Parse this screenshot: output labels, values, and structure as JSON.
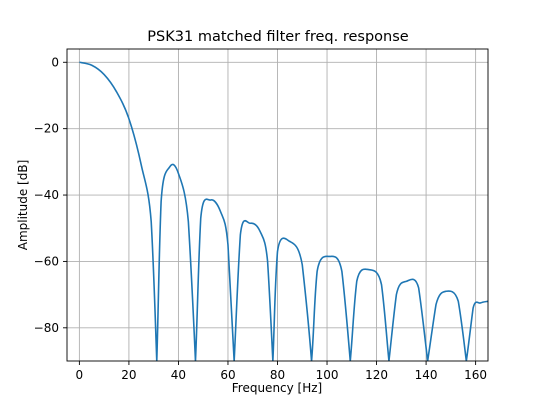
{
  "chart_data": {
    "type": "line",
    "title": "PSK31 matched filter freq. response",
    "xlabel": "Frequency [Hz]",
    "ylabel": "Amplitude [dB]",
    "xlim": [
      -5,
      165
    ],
    "ylim": [
      -90,
      4
    ],
    "xticks": [
      0,
      20,
      40,
      60,
      80,
      100,
      120,
      140,
      160
    ],
    "yticks": [
      0,
      -20,
      -40,
      -60,
      -80
    ],
    "xtick_labels": [
      "0",
      "20",
      "40",
      "60",
      "80",
      "100",
      "120",
      "140",
      "160"
    ],
    "ytick_labels": [
      "0",
      "−20",
      "−40",
      "−60",
      "−80"
    ],
    "grid": true,
    "line_color": "#1f77b4",
    "series": [
      {
        "name": "",
        "x": [
          0,
          5,
          10,
          15,
          20,
          25,
          29,
          31.25,
          33,
          36.5,
          40,
          44,
          46.875,
          49,
          53,
          57,
          60,
          62.5,
          65,
          69,
          73,
          76,
          78.125,
          80,
          85,
          90,
          93.75,
          96,
          101,
          106,
          109.375,
          112,
          117,
          122,
          125,
          128,
          132,
          137,
          140.625,
          144,
          148,
          153,
          156.25,
          159,
          162,
          165
        ],
        "y": [
          0,
          -0.9,
          -3.7,
          -8.9,
          -17,
          -31,
          -48,
          -90,
          -42,
          -31.5,
          -33.5,
          -48,
          -90,
          -47,
          -41.5,
          -45,
          -55,
          -90,
          -52,
          -48.5,
          -51,
          -60,
          -90,
          -57,
          -54,
          -61,
          -90,
          -63,
          -58.5,
          -63,
          -90,
          -66,
          -62.5,
          -67,
          -90,
          -70,
          -66,
          -68,
          -90,
          -73,
          -69,
          -72,
          -90,
          -74,
          -72.5,
          -72
        ]
      }
    ]
  }
}
